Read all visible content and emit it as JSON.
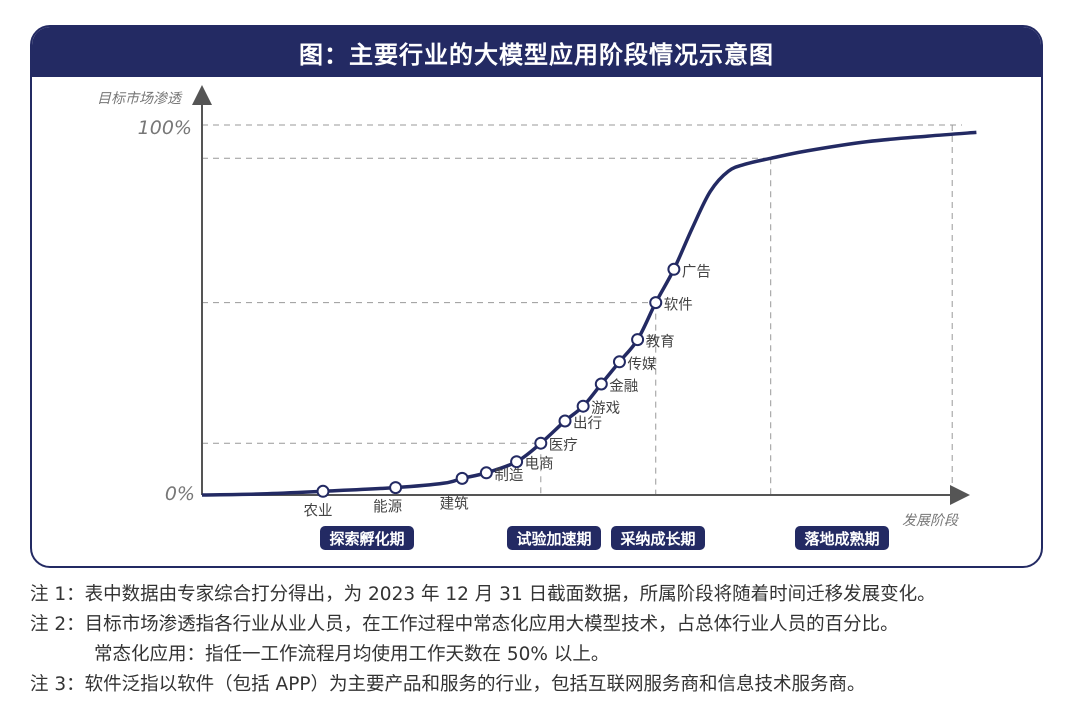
{
  "title": "图：主要行业的大模型应用阶段情况示意图",
  "chart_data": {
    "type": "line",
    "ylabel": "目标市场渗透",
    "xlabel": "发展阶段",
    "y_ticks": [
      "100%",
      "0%"
    ],
    "curve_color": "#232a63",
    "points": [
      {
        "label": "农业",
        "x": 1.0,
        "y": 1
      },
      {
        "label": "能源",
        "x": 1.6,
        "y": 2
      },
      {
        "label": "建筑",
        "x": 2.15,
        "y": 4.5
      },
      {
        "label": "制造",
        "x": 2.35,
        "y": 6
      },
      {
        "label": "电商",
        "x": 2.6,
        "y": 9
      },
      {
        "label": "医疗",
        "x": 2.8,
        "y": 14
      },
      {
        "label": "出行",
        "x": 3.0,
        "y": 20
      },
      {
        "label": "游戏",
        "x": 3.15,
        "y": 24
      },
      {
        "label": "金融",
        "x": 3.3,
        "y": 30
      },
      {
        "label": "传媒",
        "x": 3.45,
        "y": 36
      },
      {
        "label": "教育",
        "x": 3.6,
        "y": 42
      },
      {
        "label": "软件",
        "x": 3.75,
        "y": 52
      },
      {
        "label": "广告",
        "x": 3.9,
        "y": 61
      }
    ],
    "phases": [
      {
        "label": "探索孵化期",
        "start": 0,
        "end": 2.6
      },
      {
        "label": "试验加速期",
        "start": 2.6,
        "end": 3.75
      },
      {
        "label": "采纳成长期",
        "start": 3.75,
        "end": 4.7
      },
      {
        "label": "落地成熟期",
        "start": 4.7,
        "end": 6.4
      }
    ]
  },
  "notes": [
    "注 1：表中数据由专家综合打分得出，为 2023 年 12 月 31 日截面数据，所属阶段将随着时间迁移发展变化。",
    "注 2：目标市场渗透指各行业从业人员，在工作过程中常态化应用大模型技术，占总体行业人员的百分比。",
    "常态化应用：指任一工作流程月均使用工作天数在 50% 以上。",
    "注 3：软件泛指以软件（包括 APP）为主要产品和服务的行业，包括互联网服务商和信息技术服务商。"
  ]
}
